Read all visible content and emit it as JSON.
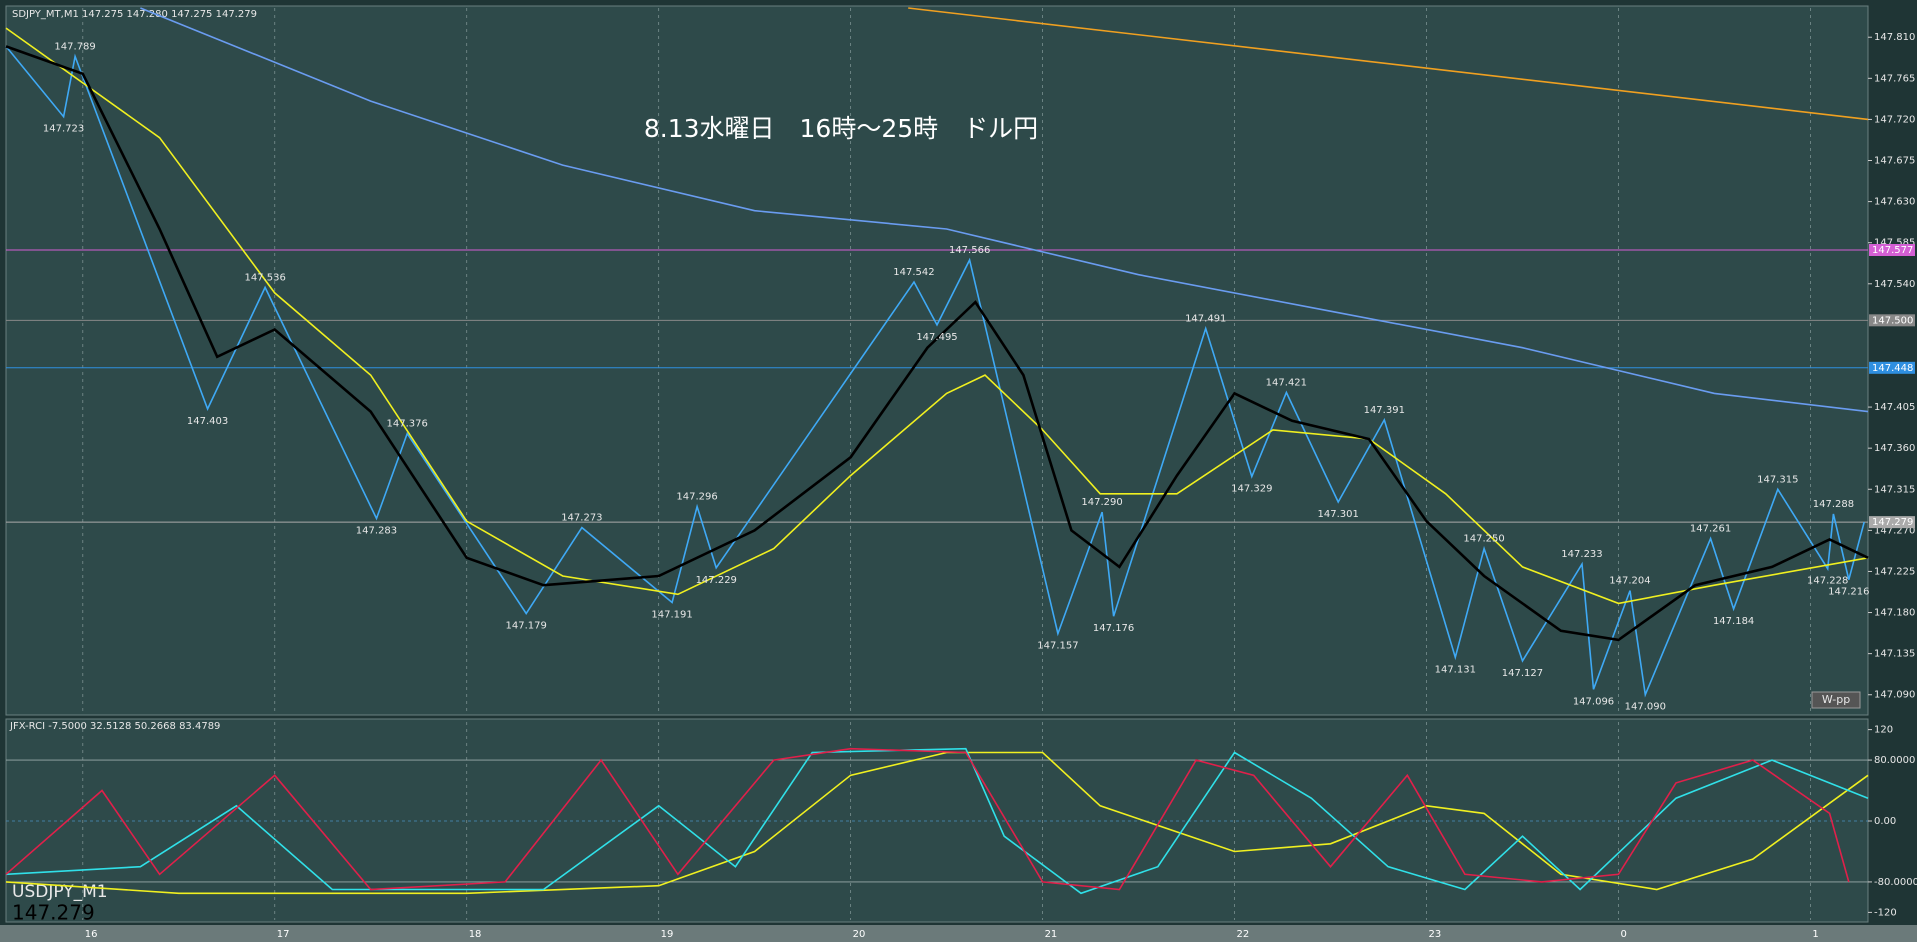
{
  "header": {
    "info": "SDJPY_MT,M1  147.275 147.280 147.275 147.279",
    "title": "8.13水曜日　16時～25時　ドル円",
    "rci_info": "JFX-RCI -7.5000 32.5128 50.2668 83.4789",
    "symbol": "USDJPY_M1",
    "last_price": "147.279",
    "badge": "W-pp"
  },
  "chart_data": [
    {
      "type": "line",
      "xlim": [
        15.6,
        25.3
      ],
      "ylim": [
        147.07,
        147.842
      ],
      "grid": true,
      "xticks": [
        16,
        17,
        18,
        19,
        20,
        21,
        22,
        23,
        {
          "value": 24,
          "label": "0"
        },
        {
          "value": 25,
          "label": "1"
        }
      ],
      "yticks": [
        {
          "value": 147.81,
          "label": "147.810"
        },
        147.765,
        {
          "value": 147.72,
          "label": "147.720"
        },
        147.675,
        {
          "value": 147.63,
          "label": "147.630"
        },
        147.585,
        {
          "value": 147.54,
          "label": "147.540"
        },
        147.405,
        {
          "value": 147.36,
          "label": "147.360"
        },
        147.315,
        {
          "value": 147.27,
          "label": "147.270"
        },
        147.225,
        {
          "value": 147.18,
          "label": "147.180"
        },
        147.135,
        {
          "value": 147.09,
          "label": "147.090"
        }
      ],
      "price_lines": [
        {
          "value": 147.577,
          "label": "147.577",
          "color": "#d45fd4"
        },
        {
          "value": 147.5,
          "label": "147.500",
          "color": "#888888"
        },
        {
          "value": 147.448,
          "label": "147.448",
          "color": "#2f8fe0"
        },
        {
          "value": 147.279,
          "label": "147.279",
          "color": "#aaaaaa"
        }
      ],
      "series": [
        {
          "color": "#f0a020",
          "x": [
            20.3,
            25.3
          ],
          "values": [
            147.842,
            147.72
          ]
        },
        {
          "color": "#6a9cf0",
          "x": [
            16.3,
            17.5,
            18.5,
            19.5,
            20.5,
            21.5,
            22.5,
            23.5,
            24.5,
            25.3
          ],
          "values": [
            147.842,
            147.74,
            147.67,
            147.62,
            147.6,
            147.55,
            147.51,
            147.47,
            147.42,
            147.4
          ]
        },
        {
          "color": "#3fa9f5",
          "x": [
            15.6,
            15.9,
            15.96,
            16.65,
            16.95,
            17.53,
            17.69,
            18.31,
            18.6,
            19.07,
            19.2,
            19.3,
            20.33,
            20.45,
            20.62,
            21.08,
            21.31,
            21.37,
            21.85,
            22.09,
            22.27,
            22.54,
            22.78,
            23.15,
            23.3,
            23.5,
            23.81,
            23.87,
            24.06,
            24.14,
            24.48,
            24.6,
            24.83,
            25.09,
            25.12,
            25.2,
            25.28
          ],
          "values": [
            147.8,
            147.723,
            147.789,
            147.403,
            147.536,
            147.283,
            147.376,
            147.179,
            147.273,
            147.191,
            147.296,
            147.229,
            147.542,
            147.495,
            147.566,
            147.157,
            147.29,
            147.176,
            147.491,
            147.329,
            147.421,
            147.301,
            147.391,
            147.131,
            147.25,
            147.127,
            147.233,
            147.096,
            147.204,
            147.09,
            147.261,
            147.184,
            147.315,
            147.228,
            147.288,
            147.216,
            147.279
          ]
        },
        {
          "color": "#f0f020",
          "x": [
            15.6,
            16.4,
            17,
            17.5,
            18,
            18.5,
            19.1,
            19.6,
            20,
            20.5,
            20.7,
            21,
            21.3,
            21.7,
            22.2,
            22.7,
            23.1,
            23.5,
            24,
            24.5,
            25.3
          ],
          "values": [
            147.82,
            147.7,
            147.53,
            147.44,
            147.28,
            147.22,
            147.2,
            147.25,
            147.33,
            147.42,
            147.44,
            147.38,
            147.31,
            147.31,
            147.38,
            147.37,
            147.31,
            147.23,
            147.19,
            147.21,
            147.24
          ]
        },
        {
          "color": "#000000",
          "x": [
            15.6,
            16,
            16.4,
            16.7,
            17,
            17.5,
            18,
            18.4,
            19,
            19.5,
            20,
            20.4,
            20.65,
            20.9,
            21.15,
            21.4,
            21.7,
            22,
            22.3,
            22.7,
            23,
            23.3,
            23.7,
            24,
            24.4,
            24.8,
            25.1,
            25.3
          ],
          "values": [
            147.8,
            147.77,
            147.6,
            147.46,
            147.49,
            147.4,
            147.24,
            147.21,
            147.22,
            147.27,
            147.35,
            147.47,
            147.52,
            147.44,
            147.27,
            147.23,
            147.33,
            147.42,
            147.39,
            147.37,
            147.28,
            147.22,
            147.16,
            147.15,
            147.21,
            147.23,
            147.26,
            147.24
          ]
        }
      ],
      "annotations": [
        {
          "x": 15.9,
          "y": 147.723,
          "label": "147.723"
        },
        {
          "x": 15.96,
          "y": 147.789,
          "label": "147.789"
        },
        {
          "x": 16.65,
          "y": 147.403,
          "label": "147.403"
        },
        {
          "x": 16.95,
          "y": 147.536,
          "label": "147.536"
        },
        {
          "x": 17.53,
          "y": 147.283,
          "label": "147.283"
        },
        {
          "x": 17.69,
          "y": 147.376,
          "label": "147.376"
        },
        {
          "x": 18.31,
          "y": 147.179,
          "label": "147.179"
        },
        {
          "x": 18.6,
          "y": 147.273,
          "label": "147.273"
        },
        {
          "x": 19.07,
          "y": 147.191,
          "label": "147.191"
        },
        {
          "x": 19.2,
          "y": 147.296,
          "label": "147.296"
        },
        {
          "x": 19.3,
          "y": 147.229,
          "label": "147.229"
        },
        {
          "x": 20.33,
          "y": 147.542,
          "label": "147.542"
        },
        {
          "x": 20.45,
          "y": 147.495,
          "label": "147.495"
        },
        {
          "x": 20.62,
          "y": 147.566,
          "label": "147.566"
        },
        {
          "x": 21.08,
          "y": 147.157,
          "label": "147.157"
        },
        {
          "x": 21.31,
          "y": 147.29,
          "label": "147.290"
        },
        {
          "x": 21.37,
          "y": 147.176,
          "label": "147.176"
        },
        {
          "x": 21.85,
          "y": 147.491,
          "label": "147.491"
        },
        {
          "x": 22.09,
          "y": 147.329,
          "label": "147.329"
        },
        {
          "x": 22.27,
          "y": 147.421,
          "label": "147.421"
        },
        {
          "x": 22.54,
          "y": 147.301,
          "label": "147.301"
        },
        {
          "x": 22.78,
          "y": 147.391,
          "label": "147.391"
        },
        {
          "x": 23.15,
          "y": 147.131,
          "label": "147.131"
        },
        {
          "x": 23.3,
          "y": 147.25,
          "label": "147.250"
        },
        {
          "x": 23.5,
          "y": 147.127,
          "label": "147.127"
        },
        {
          "x": 23.81,
          "y": 147.233,
          "label": "147.233"
        },
        {
          "x": 23.87,
          "y": 147.096,
          "label": "147.096"
        },
        {
          "x": 24.06,
          "y": 147.204,
          "label": "147.204"
        },
        {
          "x": 24.14,
          "y": 147.09,
          "label": "147.090"
        },
        {
          "x": 24.48,
          "y": 147.261,
          "label": "147.261"
        },
        {
          "x": 24.6,
          "y": 147.184,
          "label": "147.184"
        },
        {
          "x": 24.83,
          "y": 147.315,
          "label": "147.315"
        },
        {
          "x": 25.09,
          "y": 147.228,
          "label": "147.228"
        },
        {
          "x": 25.12,
          "y": 147.288,
          "label": "147.288"
        },
        {
          "x": 25.2,
          "y": 147.216,
          "label": "147.216"
        }
      ]
    },
    {
      "type": "line",
      "xlim": [
        15.6,
        25.3
      ],
      "ylim": [
        -130,
        130
      ],
      "yticks": [
        120,
        {
          "value": 80,
          "label": "80.0000"
        },
        {
          "value": 0,
          "label": "0.00"
        },
        {
          "value": -80,
          "label": "-80.0000"
        },
        -120
      ],
      "series": [
        {
          "color": "#f0f020",
          "x": [
            15.6,
            16.5,
            18,
            19,
            19.5,
            20,
            20.5,
            21,
            21.3,
            22,
            22.5,
            23,
            23.3,
            23.7,
            24.2,
            24.7,
            25.3
          ],
          "values": [
            -80,
            -95,
            -95,
            -85,
            -40,
            60,
            90,
            90,
            20,
            -40,
            -30,
            20,
            10,
            -70,
            -90,
            -50,
            60
          ]
        },
        {
          "color": "#30e0e8",
          "x": [
            15.6,
            16.3,
            16.8,
            17.3,
            18.4,
            19,
            19.4,
            19.8,
            20.6,
            20.8,
            21.2,
            21.6,
            22,
            22.4,
            22.8,
            23.2,
            23.5,
            23.8,
            24.3,
            24.8,
            25.3
          ],
          "values": [
            -70,
            -60,
            20,
            -90,
            -90,
            20,
            -60,
            90,
            95,
            -20,
            -95,
            -60,
            90,
            30,
            -60,
            -90,
            -20,
            -90,
            30,
            80,
            30
          ]
        },
        {
          "color": "#e0204a",
          "x": [
            15.6,
            16.1,
            16.4,
            17,
            17.5,
            18.2,
            18.7,
            19.1,
            19.6,
            20,
            20.6,
            21,
            21.4,
            21.8,
            22.1,
            22.5,
            22.9,
            23.2,
            23.6,
            24,
            24.3,
            24.7,
            25.1,
            25.2
          ],
          "values": [
            -70,
            40,
            -70,
            60,
            -90,
            -80,
            80,
            -70,
            80,
            95,
            90,
            -80,
            -90,
            80,
            60,
            -60,
            60,
            -70,
            -80,
            -70,
            50,
            80,
            10,
            -80
          ]
        }
      ]
    }
  ]
}
